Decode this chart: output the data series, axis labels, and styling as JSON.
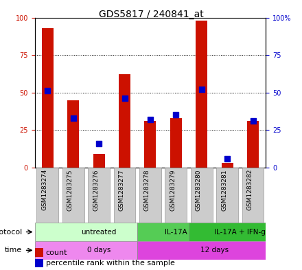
{
  "title": "GDS5817 / 240841_at",
  "samples": [
    "GSM1283274",
    "GSM1283275",
    "GSM1283276",
    "GSM1283277",
    "GSM1283278",
    "GSM1283279",
    "GSM1283280",
    "GSM1283281",
    "GSM1283282"
  ],
  "count_values": [
    93,
    45,
    9,
    62,
    31,
    33,
    98,
    3,
    31
  ],
  "percentile_values": [
    51,
    33,
    16,
    46,
    32,
    35,
    52,
    6,
    31
  ],
  "protocol_groups": [
    {
      "label": "untreated",
      "start": 0,
      "end": 4,
      "color": "#ccffcc"
    },
    {
      "label": "IL-17A",
      "start": 4,
      "end": 6,
      "color": "#55cc55"
    },
    {
      "label": "IL-17A + IFN-g",
      "start": 6,
      "end": 9,
      "color": "#33bb33"
    }
  ],
  "time_groups": [
    {
      "label": "0 days",
      "start": 0,
      "end": 4,
      "color": "#ee88ee"
    },
    {
      "label": "12 days",
      "start": 4,
      "end": 9,
      "color": "#dd44dd"
    }
  ],
  "ylim": [
    0,
    100
  ],
  "yticks": [
    0,
    25,
    50,
    75,
    100
  ],
  "bar_color": "#cc1100",
  "dot_color": "#0000cc",
  "bar_width": 0.45,
  "dot_size": 28,
  "background_color": "#ffffff",
  "grid_color": "#000000",
  "title_fontsize": 10,
  "tick_fontsize": 7,
  "label_fontsize": 8,
  "sample_fontsize": 6.5
}
